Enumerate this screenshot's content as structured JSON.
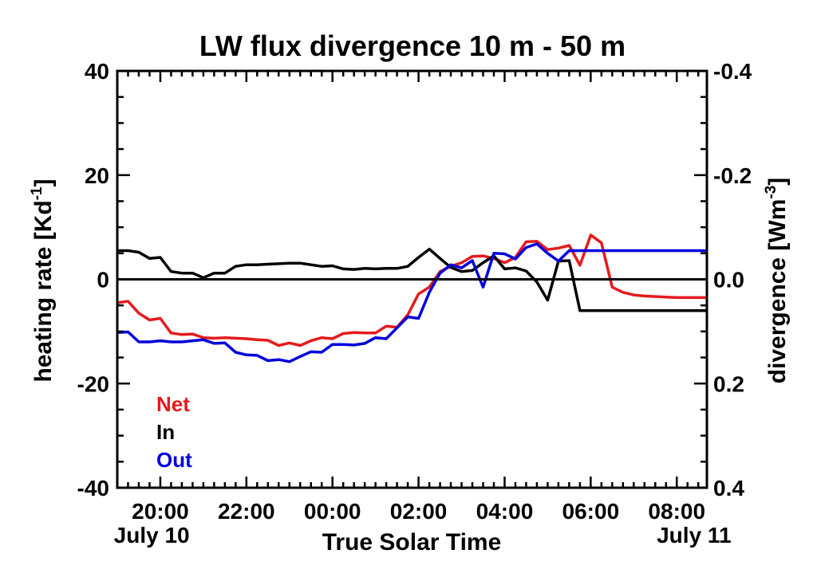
{
  "chart_data": {
    "type": "line",
    "title": "LW flux divergence 10 m - 50 m",
    "xlabel": "True Solar Time",
    "ylabel": "heating rate [Kd",
    "ylabel_sup": "-1",
    "ylabel_end": "]",
    "ylabel_right": "divergence [Wm",
    "ylabel_right_sup": "-3",
    "ylabel_right_end": "]",
    "xlim": [
      19.0,
      32.7
    ],
    "ylim": [
      -40,
      40
    ],
    "y2lim": [
      0.4,
      -0.4
    ],
    "x_ticks": [
      {
        "x": 20,
        "label": "20:00"
      },
      {
        "x": 22,
        "label": "22:00"
      },
      {
        "x": 24,
        "label": "00:00"
      },
      {
        "x": 26,
        "label": "02:00"
      },
      {
        "x": 28,
        "label": "04:00"
      },
      {
        "x": 30,
        "label": "06:00"
      },
      {
        "x": 32,
        "label": "08:00"
      }
    ],
    "date_labels": [
      {
        "x": 19.8,
        "label": "July 10"
      },
      {
        "x": 32.4,
        "label": "July 11"
      }
    ],
    "y_ticks": [
      {
        "y": 40,
        "label": "40"
      },
      {
        "y": 20,
        "label": "20"
      },
      {
        "y": 0,
        "label": "0"
      },
      {
        "y": -20,
        "label": "-20"
      },
      {
        "y": -40,
        "label": "-40"
      }
    ],
    "y2_ticks": [
      {
        "y": -0.4,
        "label": "-0.4"
      },
      {
        "y": -0.2,
        "label": "-0.2"
      },
      {
        "y": 0.0,
        "label": "0.0"
      },
      {
        "y": 0.2,
        "label": "0.2"
      },
      {
        "y": 0.4,
        "label": "0.4"
      }
    ],
    "zero_line": true,
    "legend_position": "bottom-left",
    "series": [
      {
        "name": "Net",
        "color": "#e41a1c",
        "x": [
          19.0,
          19.25,
          19.5,
          19.75,
          20.0,
          20.25,
          20.5,
          20.75,
          21.0,
          21.25,
          21.5,
          21.75,
          22.0,
          22.25,
          22.5,
          22.75,
          23.0,
          23.25,
          23.5,
          23.75,
          24.0,
          24.25,
          24.5,
          24.75,
          25.0,
          25.25,
          25.5,
          25.75,
          26.0,
          26.25,
          26.5,
          26.75,
          27.0,
          27.25,
          27.5,
          27.75,
          28.0,
          28.25,
          28.5,
          28.75,
          29.0,
          29.25,
          29.5,
          29.75,
          30.0,
          30.25,
          30.5,
          30.75,
          31.0,
          31.25,
          31.5,
          31.75,
          32.0,
          32.25,
          32.5,
          32.7
        ],
        "y": [
          -4.5,
          -4.2,
          -6.5,
          -7.8,
          -7.5,
          -10.3,
          -10.6,
          -10.5,
          -11.2,
          -11.3,
          -11.2,
          -11.3,
          -11.4,
          -11.6,
          -11.7,
          -12.7,
          -12.2,
          -12.7,
          -11.8,
          -11.2,
          -11.4,
          -10.4,
          -10.2,
          -10.3,
          -10.3,
          -9.0,
          -9.2,
          -6.8,
          -2.8,
          -1.5,
          1.5,
          2.5,
          3.2,
          4.4,
          4.5,
          4.0,
          3.2,
          4.2,
          7.2,
          7.3,
          5.7,
          6.0,
          6.5,
          2.7,
          8.5,
          7.0,
          -1.5,
          -2.5,
          -3.0,
          -3.2,
          -3.3,
          -3.4,
          -3.5,
          -3.5,
          -3.5,
          -3.5
        ]
      },
      {
        "name": "In",
        "color": "#000000",
        "x": [
          19.0,
          19.25,
          19.5,
          19.75,
          20.0,
          20.25,
          20.5,
          20.75,
          21.0,
          21.25,
          21.5,
          21.75,
          22.0,
          22.25,
          22.5,
          22.75,
          23.0,
          23.25,
          23.5,
          23.75,
          24.0,
          24.25,
          24.5,
          24.75,
          25.0,
          25.25,
          25.5,
          25.75,
          26.0,
          26.25,
          26.5,
          26.75,
          27.0,
          27.25,
          27.5,
          27.75,
          28.0,
          28.25,
          28.5,
          28.75,
          29.0,
          29.25,
          29.5,
          29.75,
          30.0,
          30.25,
          30.5,
          30.75,
          31.0,
          31.25,
          31.5,
          31.75,
          32.0,
          32.25,
          32.5,
          32.7
        ],
        "y": [
          5.5,
          5.5,
          5.2,
          4.0,
          4.2,
          1.5,
          1.2,
          1.2,
          0.3,
          1.2,
          1.2,
          2.5,
          2.8,
          2.8,
          2.9,
          3.0,
          3.1,
          3.1,
          2.8,
          2.5,
          2.6,
          2.0,
          1.9,
          2.1,
          2.0,
          2.1,
          2.1,
          2.5,
          4.2,
          5.8,
          4.0,
          2.3,
          1.5,
          1.7,
          3.2,
          4.5,
          2.0,
          2.2,
          1.6,
          -0.5,
          -4.0,
          3.5,
          3.6,
          -6.0,
          -6.0,
          -6.0,
          -6.0,
          -6.0,
          -6.0,
          -6.0,
          -6.0,
          -6.0,
          -6.0,
          -6.0,
          -6.0,
          -6.0
        ]
      },
      {
        "name": "Out",
        "color": "#0000dd",
        "x": [
          19.0,
          19.25,
          19.5,
          19.75,
          20.0,
          20.25,
          20.5,
          20.75,
          21.0,
          21.25,
          21.5,
          21.75,
          22.0,
          22.25,
          22.5,
          22.75,
          23.0,
          23.25,
          23.5,
          23.75,
          24.0,
          24.25,
          24.5,
          24.75,
          25.0,
          25.25,
          25.5,
          25.75,
          26.0,
          26.25,
          26.5,
          26.75,
          27.0,
          27.25,
          27.5,
          27.75,
          28.0,
          28.25,
          28.5,
          28.75,
          29.0,
          29.25,
          29.5,
          29.75,
          30.0,
          30.25,
          30.5,
          30.75,
          31.0,
          31.25,
          31.5,
          31.75,
          32.0,
          32.25,
          32.5,
          32.7
        ],
        "y": [
          -10.2,
          -10.1,
          -12.0,
          -12.0,
          -11.8,
          -12.0,
          -12.0,
          -11.8,
          -11.6,
          -12.3,
          -12.2,
          -14.0,
          -14.5,
          -14.6,
          -15.6,
          -15.4,
          -15.8,
          -14.8,
          -13.9,
          -14.0,
          -12.5,
          -12.5,
          -12.6,
          -12.3,
          -11.2,
          -11.4,
          -9.3,
          -7.2,
          -7.5,
          -2.5,
          1.2,
          2.8,
          2.2,
          3.6,
          -1.5,
          5.0,
          4.9,
          3.9,
          6.1,
          6.8,
          5.0,
          3.5,
          5.5,
          5.5,
          5.5,
          5.5,
          5.5,
          5.5,
          5.5,
          5.5,
          5.5,
          5.5,
          5.5,
          5.5,
          5.5,
          5.5
        ]
      }
    ]
  }
}
